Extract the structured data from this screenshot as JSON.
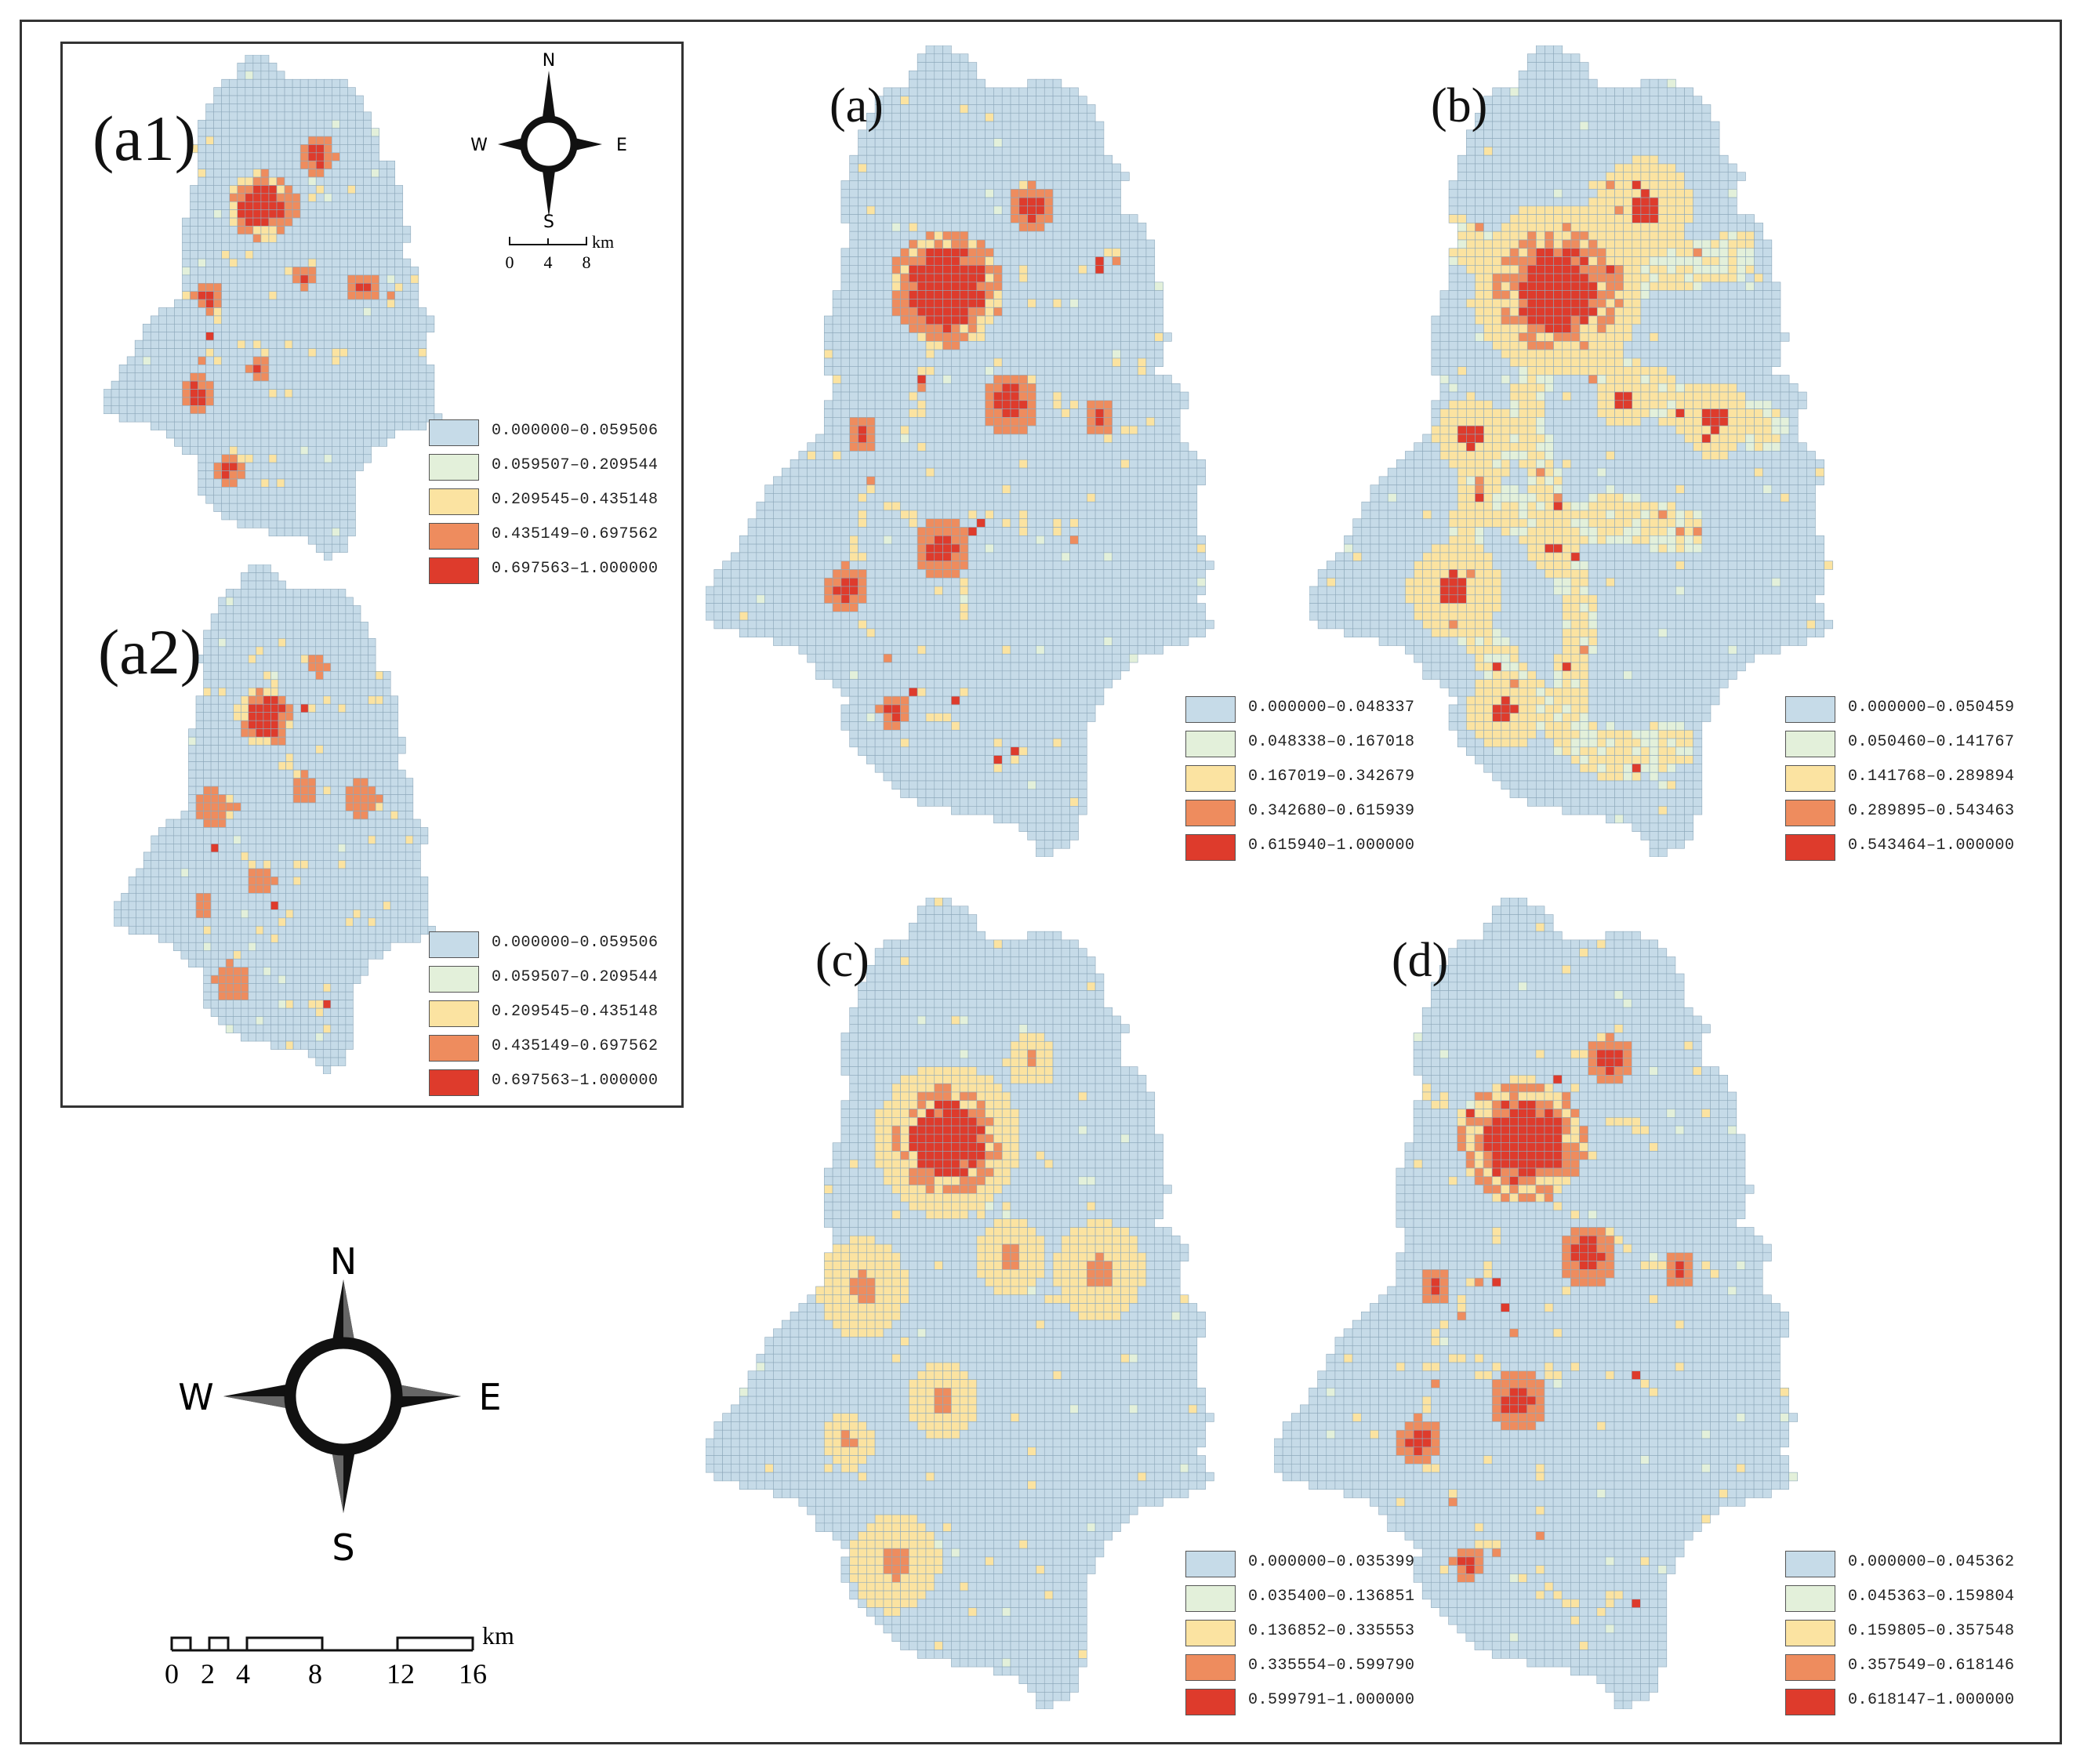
{
  "colors": {
    "class1": "#c6dbe8",
    "class2": "#e3f0da",
    "class3": "#fbe3a1",
    "class4": "#ee8c5e",
    "class5": "#de3b2c",
    "grid": "#8ea9bb"
  },
  "panels": [
    {
      "id": "a1",
      "label": "(a1)",
      "legend": [
        "0.000000–0.059506",
        "0.059507–0.209544",
        "0.209545–0.435148",
        "0.435149–0.697562",
        "0.697563–1.000000"
      ]
    },
    {
      "id": "a2",
      "label": "(a2)",
      "legend": [
        "0.000000–0.059506",
        "0.059507–0.209544",
        "0.209545–0.435148",
        "0.435149–0.697562",
        "0.697563–1.000000"
      ]
    },
    {
      "id": "a",
      "label": "(a)",
      "legend": [
        "0.000000–0.048337",
        "0.048338–0.167018",
        "0.167019–0.342679",
        "0.342680–0.615939",
        "0.615940–1.000000"
      ]
    },
    {
      "id": "b",
      "label": "(b)",
      "legend": [
        "0.000000–0.050459",
        "0.050460–0.141767",
        "0.141768–0.289894",
        "0.289895–0.543463",
        "0.543464–1.000000"
      ]
    },
    {
      "id": "c",
      "label": "(c)",
      "legend": [
        "0.000000–0.035399",
        "0.035400–0.136851",
        "0.136852–0.335553",
        "0.335554–0.599790",
        "0.599791–1.000000"
      ]
    },
    {
      "id": "d",
      "label": "(d)",
      "legend": [
        "0.000000–0.045362",
        "0.045363–0.159804",
        "0.159805–0.357548",
        "0.357549–0.618146",
        "0.618147–1.000000"
      ]
    }
  ],
  "compass": {
    "n": "N",
    "s": "S",
    "e": "E",
    "w": "W"
  },
  "inset_scale": {
    "unit": "km",
    "ticks": [
      "0",
      "4",
      "8"
    ]
  },
  "main_scale": {
    "unit": "km",
    "ticks": [
      "0",
      "2",
      "4",
      "8",
      "12",
      "16"
    ]
  }
}
